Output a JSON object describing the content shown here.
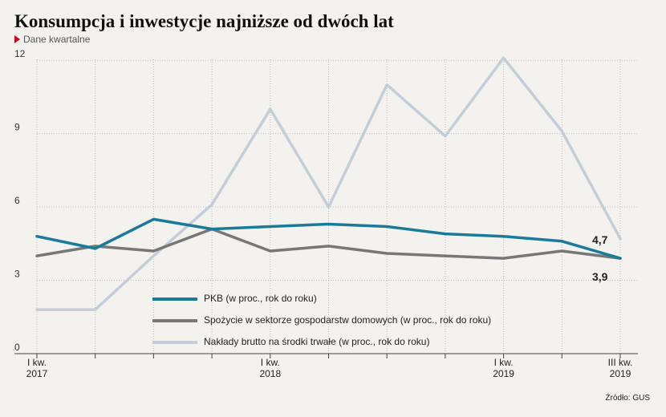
{
  "header": {
    "title": "Konsumpcja i inwestycje najniższe od dwóch lat",
    "subtitle": "Dane kwartalne"
  },
  "source": "Źródło: GUS",
  "chart_data": {
    "type": "line",
    "x": [
      "I kw. 2017",
      "II kw. 2017",
      "III kw. 2017",
      "IV kw. 2017",
      "I kw. 2018",
      "II kw. 2018",
      "III kw. 2018",
      "IV kw. 2018",
      "I kw. 2019",
      "II kw. 2019",
      "III kw. 2019"
    ],
    "x_tick_labels": [
      {
        "index": 0,
        "line1": "I kw.",
        "line2": "2017"
      },
      {
        "index": 4,
        "line1": "I kw.",
        "line2": "2018"
      },
      {
        "index": 8,
        "line1": "I kw.",
        "line2": "2019"
      },
      {
        "index": 10,
        "line1": "III kw.",
        "line2": "2019"
      }
    ],
    "y_ticks": [
      0,
      3,
      6,
      9,
      12
    ],
    "ylim": [
      0,
      12.5
    ],
    "grid": true,
    "legend_position": "bottom-left-inside",
    "series": [
      {
        "name": "PKB (w proc., rok do roku)",
        "color": "#1a7a9a",
        "values": [
          4.8,
          4.3,
          5.5,
          5.1,
          5.2,
          5.3,
          5.2,
          4.9,
          4.8,
          4.6,
          3.9
        ]
      },
      {
        "name": "Spożycie w sektorze gospodarstw domowych (w proc., rok do roku)",
        "color": "#777777",
        "values": [
          4.0,
          4.4,
          4.2,
          5.1,
          4.2,
          4.4,
          4.1,
          4.0,
          3.9,
          4.2,
          3.9
        ]
      },
      {
        "name": "Nakłady brutto na środki trwałe (w proc., rok do roku)",
        "color": "#c5cdd8",
        "values": [
          1.8,
          1.8,
          4.0,
          6.1,
          10.0,
          6.0,
          11.0,
          8.9,
          12.1,
          9.1,
          4.7
        ]
      }
    ],
    "annotations": [
      {
        "text": "4,7"
      },
      {
        "text": "3,9"
      }
    ]
  }
}
